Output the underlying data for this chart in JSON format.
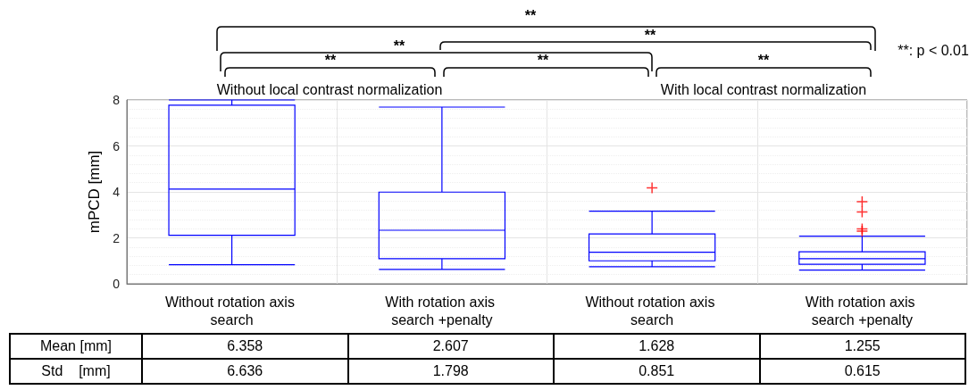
{
  "chart_data": {
    "type": "box",
    "ylabel": "mPCD [mm]",
    "categories": [
      "Without rotation axis search",
      "With rotation axis search +penalty",
      "Without rotation axis search",
      "With rotation axis search +penalty"
    ],
    "series": [
      {
        "color": "#0000ff",
        "boxes": [
          {
            "low": 0.83,
            "q1": 2.11,
            "median": 4.12,
            "q3": 7.77,
            "high": 8
          },
          {
            "low": 0.63,
            "q1": 1.09,
            "median": 2.33,
            "q3": 3.99,
            "high": 7.69
          },
          {
            "low": 0.74,
            "q1": 1.0,
            "median": 1.37,
            "q3": 2.17,
            "high": 3.16,
            "outliers": [
              4.17
            ]
          },
          {
            "low": 0.6,
            "q1": 0.85,
            "median": 1.09,
            "q3": 1.39,
            "high": 2.07,
            "outliers": [
              3.57,
              3.13,
              2.39,
              2.29
            ]
          }
        ]
      }
    ],
    "ylim": [
      0,
      8
    ],
    "yticks": [
      0,
      2,
      4,
      6,
      8
    ],
    "grid": true,
    "marker": "cross",
    "annotations": [
      "**",
      "**",
      "**",
      "**",
      "**",
      "**",
      "**: p < 0.01",
      "Without local contrast normalization",
      "With local contrast normalization",
      "Mean [mm]",
      "6.358",
      "2.607",
      "1.628",
      "1.255",
      "Std    [mm]",
      "6.636",
      "1.798",
      "0.851",
      "0.615"
    ]
  }
}
